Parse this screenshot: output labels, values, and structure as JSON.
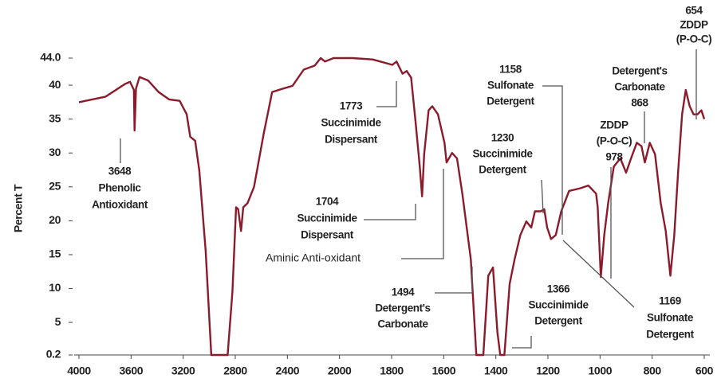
{
  "chart_data": {
    "type": "line",
    "y_label": "Percent T",
    "color": "#8b1a2b",
    "xlim": [
      4000,
      600
    ],
    "ylim": [
      0.2,
      44
    ],
    "xticks": [
      4000,
      3600,
      3200,
      2800,
      2400,
      2000,
      1800,
      1600,
      1400,
      1200,
      1000,
      800,
      600
    ],
    "yticks": [
      {
        "value": 44,
        "label": "44.0"
      },
      40,
      35,
      30,
      25,
      20,
      15,
      10,
      5,
      0.2
    ],
    "x": [
      4000,
      3796,
      3645,
      3608,
      3578,
      3573,
      3562,
      3535,
      3470,
      3389,
      3308,
      3227,
      3173,
      3146,
      3108,
      3076,
      3027,
      2984,
      2859,
      2822,
      2794,
      2778,
      2756,
      2739,
      2706,
      2656,
      2583,
      2517,
      2433,
      2361,
      2275,
      2190,
      2144,
      2111,
      2046,
      1950,
      1873,
      1797,
      1781,
      1758,
      1742,
      1725,
      1708,
      1692,
      1683,
      1675,
      1658,
      1644,
      1622,
      1597,
      1589,
      1568,
      1549,
      1528,
      1496,
      1475,
      1448,
      1429,
      1411,
      1394,
      1383,
      1367,
      1347,
      1328,
      1306,
      1283,
      1264,
      1250,
      1228,
      1214,
      1203,
      1188,
      1170,
      1149,
      1119,
      1075,
      1045,
      1015,
      1009,
      997,
      984,
      969,
      947,
      922,
      900,
      881,
      859,
      841,
      828,
      809,
      789,
      767,
      748,
      730,
      715,
      700,
      685,
      671,
      656,
      641,
      626,
      611,
      600
    ],
    "values": [
      37.5,
      38.3,
      40.2,
      40.5,
      39.3,
      33.3,
      39.5,
      41.2,
      40.7,
      39,
      37.9,
      37.7,
      35.7,
      32.4,
      31.8,
      27.4,
      15.5,
      0.2,
      0.2,
      9.5,
      22,
      21.7,
      18.5,
      22,
      22.6,
      25,
      32.7,
      39,
      39.5,
      39.9,
      42.3,
      42.9,
      44,
      43.5,
      44,
      44,
      43.8,
      43,
      43.5,
      41.7,
      42.1,
      41.1,
      34.5,
      28,
      23.6,
      29.8,
      36.3,
      36.9,
      35.7,
      31.5,
      28.6,
      30,
      29.2,
      23.8,
      14.3,
      0.2,
      0.2,
      11.9,
      13.1,
      3.6,
      0.2,
      0.2,
      10.7,
      14.3,
      17.9,
      19.9,
      19,
      21.4,
      21.4,
      21.7,
      19,
      17.3,
      17.9,
      21.4,
      24.4,
      24.8,
      25.2,
      24,
      22,
      11.7,
      17.9,
      22.6,
      28,
      29.2,
      27.1,
      29.2,
      31.5,
      31,
      28.6,
      31.5,
      29.8,
      22.6,
      18.5,
      11.9,
      17.9,
      27.4,
      35.7,
      39.3,
      36.9,
      35.7,
      35.7,
      36.3,
      35
    ],
    "annotations": [
      {
        "lines": [
          "654",
          "ZDDP",
          "(P-O-C)"
        ]
      },
      {
        "lines": [
          "Detergent's",
          "Carbonate",
          "868"
        ]
      },
      {
        "lines": [
          "1158",
          "Sulfonate",
          "Detergent"
        ]
      },
      {
        "lines": [
          "1773",
          "Succinimide",
          "Dispersant"
        ]
      },
      {
        "lines": [
          "1230",
          "Succinimide",
          "Detergent"
        ]
      },
      {
        "lines": [
          "ZDDP",
          "(P-O-C)",
          "978"
        ]
      },
      {
        "lines": [
          "3648",
          "Phenolic",
          "Antioxidant"
        ]
      },
      {
        "lines": [
          "1704",
          "Succinimide",
          "Dispersant"
        ]
      },
      {
        "lines": [
          "Aminic Anti-oxidant"
        ]
      },
      {
        "lines": [
          "1494",
          "Detergent's",
          "Carbonate"
        ]
      },
      {
        "lines": [
          "1366",
          "Succinimide",
          "Detergent"
        ]
      },
      {
        "lines": [
          "1169",
          "Sulfonate",
          "Detergent"
        ]
      }
    ]
  }
}
